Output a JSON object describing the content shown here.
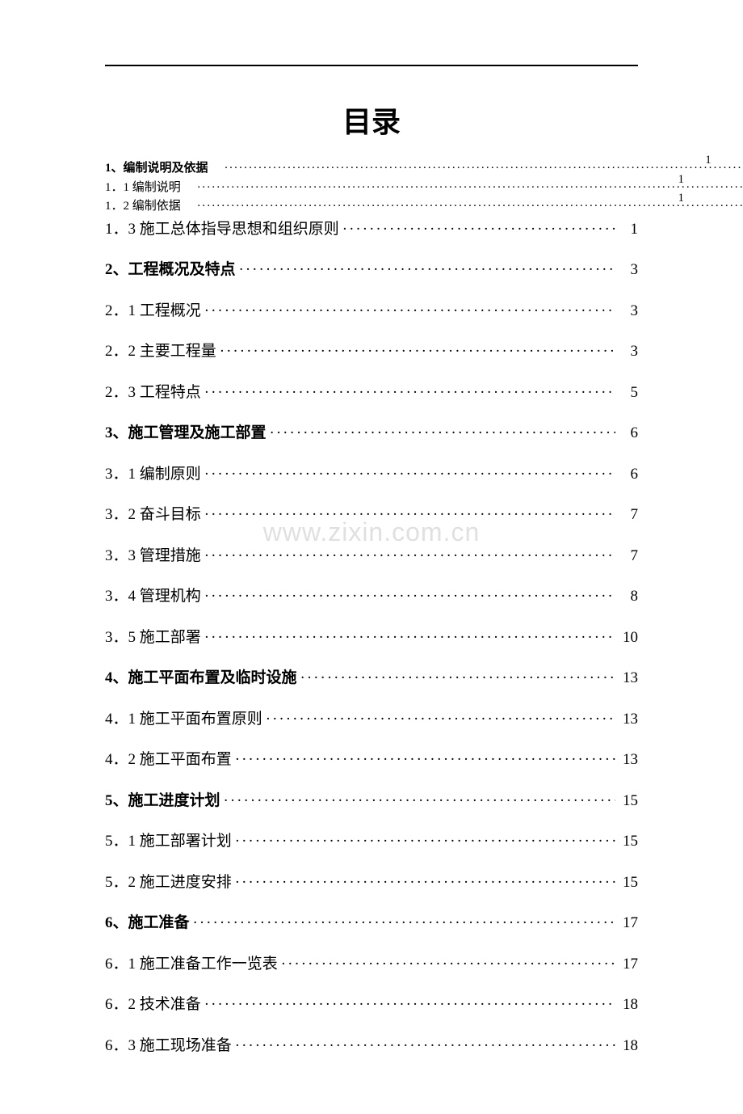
{
  "title": "目录",
  "watermark": "www.zixin.com.cn",
  "colors": {
    "text": "#000000",
    "background": "#ffffff",
    "watermark": "#e0e0e0",
    "rule": "#000000"
  },
  "typography": {
    "title_fontsize": 36,
    "entry_fontsize": 19,
    "small_entry_fontsize": 15,
    "font_family": "SimSun"
  },
  "entries": [
    {
      "label": "1、编制说明及依据",
      "page": "1",
      "bold": true,
      "style": "inline-page",
      "small": true
    },
    {
      "label": "1．1 编制说明",
      "page": "1",
      "bold": false,
      "style": "inline-page",
      "small": true
    },
    {
      "label": "1．2 编制依据",
      "page": "1",
      "bold": false,
      "style": "inline-page",
      "small": true
    },
    {
      "label": "1．3 施工总体指导思想和组织原则",
      "page": "1",
      "bold": false,
      "style": "normal",
      "small": false
    },
    {
      "label": "2、工程概况及特点",
      "page": "3",
      "bold": true,
      "style": "normal",
      "spaced": true
    },
    {
      "label": "2．1 工程概况",
      "page": "3",
      "bold": false,
      "style": "normal",
      "spaced": true
    },
    {
      "label": "2．2 主要工程量",
      "page": "3",
      "bold": false,
      "style": "normal",
      "spaced": true
    },
    {
      "label": "2．3 工程特点",
      "page": "5",
      "bold": false,
      "style": "normal",
      "spaced": true
    },
    {
      "label": "3、施工管理及施工部置",
      "page": "6",
      "bold": true,
      "style": "normal",
      "spaced": true
    },
    {
      "label": "3．1 编制原则",
      "page": "6",
      "bold": false,
      "style": "normal",
      "spaced": true
    },
    {
      "label": "3．2 奋斗目标",
      "page": "7",
      "bold": false,
      "style": "normal",
      "spaced": true
    },
    {
      "label": "3．3 管理措施",
      "page": "7",
      "bold": false,
      "style": "normal",
      "spaced": true
    },
    {
      "label": "3．4 管理机构",
      "page": "8",
      "bold": false,
      "style": "normal",
      "spaced": true
    },
    {
      "label": "3．5 施工部署",
      "page": "10",
      "bold": false,
      "style": "normal",
      "spaced": true
    },
    {
      "label": "4、施工平面布置及临时设施",
      "page": "13",
      "bold": true,
      "style": "normal",
      "spaced": true
    },
    {
      "label": "4．1 施工平面布置原则",
      "page": "13",
      "bold": false,
      "style": "normal",
      "spaced": true
    },
    {
      "label": "4．2 施工平面布置",
      "page": "13",
      "bold": false,
      "style": "normal",
      "spaced": true
    },
    {
      "label": "5、施工进度计划",
      "page": "15",
      "bold": true,
      "style": "normal",
      "spaced": true
    },
    {
      "label": "5．1 施工部署计划",
      "page": "15",
      "bold": false,
      "style": "normal",
      "spaced": true
    },
    {
      "label": "5．2 施工进度安排",
      "page": "15",
      "bold": false,
      "style": "normal",
      "spaced": true
    },
    {
      "label": "6、施工准备",
      "page": "17",
      "bold": true,
      "style": "normal",
      "spaced": true
    },
    {
      "label": "6．1 施工准备工作一览表",
      "page": "17",
      "bold": false,
      "style": "normal",
      "spaced": true
    },
    {
      "label": "6．2 技术准备",
      "page": "18",
      "bold": false,
      "style": "normal",
      "spaced": true
    },
    {
      "label": "6．3 施工现场准备",
      "page": "18",
      "bold": false,
      "style": "normal",
      "spaced": true
    }
  ]
}
